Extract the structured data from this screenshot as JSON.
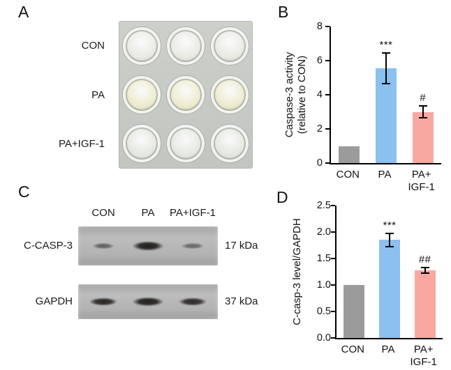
{
  "figure": {
    "panel_a_label": "A",
    "panel_b_label": "B",
    "panel_c_label": "C",
    "panel_d_label": "D"
  },
  "panel_a": {
    "rows": [
      {
        "label": "CON",
        "well_fill": "#e9eae3"
      },
      {
        "label": "PA",
        "well_fill": "#edebcd"
      },
      {
        "label": "PA+IGF-1",
        "well_fill": "#e5e8e0"
      }
    ],
    "wells_per_row": 3
  },
  "panel_c": {
    "lanes": [
      "CON",
      "PA",
      "PA+IGF-1"
    ],
    "blots": [
      {
        "target": "C-CASP-3",
        "size_label": "17 kDa",
        "band_intensities": [
          0.55,
          1.0,
          0.5
        ],
        "band_widths": [
          40,
          58,
          42
        ],
        "band_heights": [
          11,
          18,
          11
        ]
      },
      {
        "target": "GAPDH",
        "size_label": "37 kDa",
        "band_intensities": [
          0.95,
          1.0,
          0.92
        ],
        "band_widths": [
          52,
          58,
          52
        ],
        "band_heights": [
          15,
          17,
          15
        ]
      }
    ]
  },
  "chart_data": [
    {
      "id": "caspase3-activity",
      "type": "bar",
      "ylabel_lines": [
        "Caspase-3 activity",
        "(relative to CON)"
      ],
      "ylim": [
        0,
        8
      ],
      "yticks": [
        {
          "v": 0,
          "label": "0"
        },
        {
          "v": 2,
          "label": "2"
        },
        {
          "v": 4,
          "label": "4"
        },
        {
          "v": 6,
          "label": "6"
        },
        {
          "v": 8,
          "label": "8"
        }
      ],
      "categories": [
        [
          "CON"
        ],
        [
          "PA"
        ],
        [
          "PA+",
          "IGF-1"
        ]
      ],
      "values": [
        1.0,
        5.55,
        3.0
      ],
      "errors": [
        0,
        0.9,
        0.35
      ],
      "annotations": [
        "",
        "***",
        "#"
      ],
      "bar_colors": [
        "#9b9b9b",
        "#8cc0ee",
        "#f8a7a1"
      ],
      "legend": "none",
      "grid": false
    },
    {
      "id": "c-casp3-level",
      "type": "bar",
      "ylabel_lines": [
        "C-casp-3 level/GAPDH"
      ],
      "ylim": [
        0,
        2.5
      ],
      "yticks": [
        {
          "v": 0,
          "label": "0.0"
        },
        {
          "v": 0.5,
          "label": "0.5"
        },
        {
          "v": 1.0,
          "label": "1.0"
        },
        {
          "v": 1.5,
          "label": "1.5"
        },
        {
          "v": 2.0,
          "label": "2.0"
        },
        {
          "v": 2.5,
          "label": "2.5"
        }
      ],
      "categories": [
        [
          "CON"
        ],
        [
          "PA"
        ],
        [
          "PA+",
          "IGF-1"
        ]
      ],
      "values": [
        1.0,
        1.85,
        1.28
      ],
      "errors": [
        0,
        0.12,
        0.05
      ],
      "annotations": [
        "",
        "***",
        "##"
      ],
      "bar_colors": [
        "#9b9b9b",
        "#8cc0ee",
        "#f8a7a1"
      ],
      "legend": "none",
      "grid": false
    }
  ]
}
